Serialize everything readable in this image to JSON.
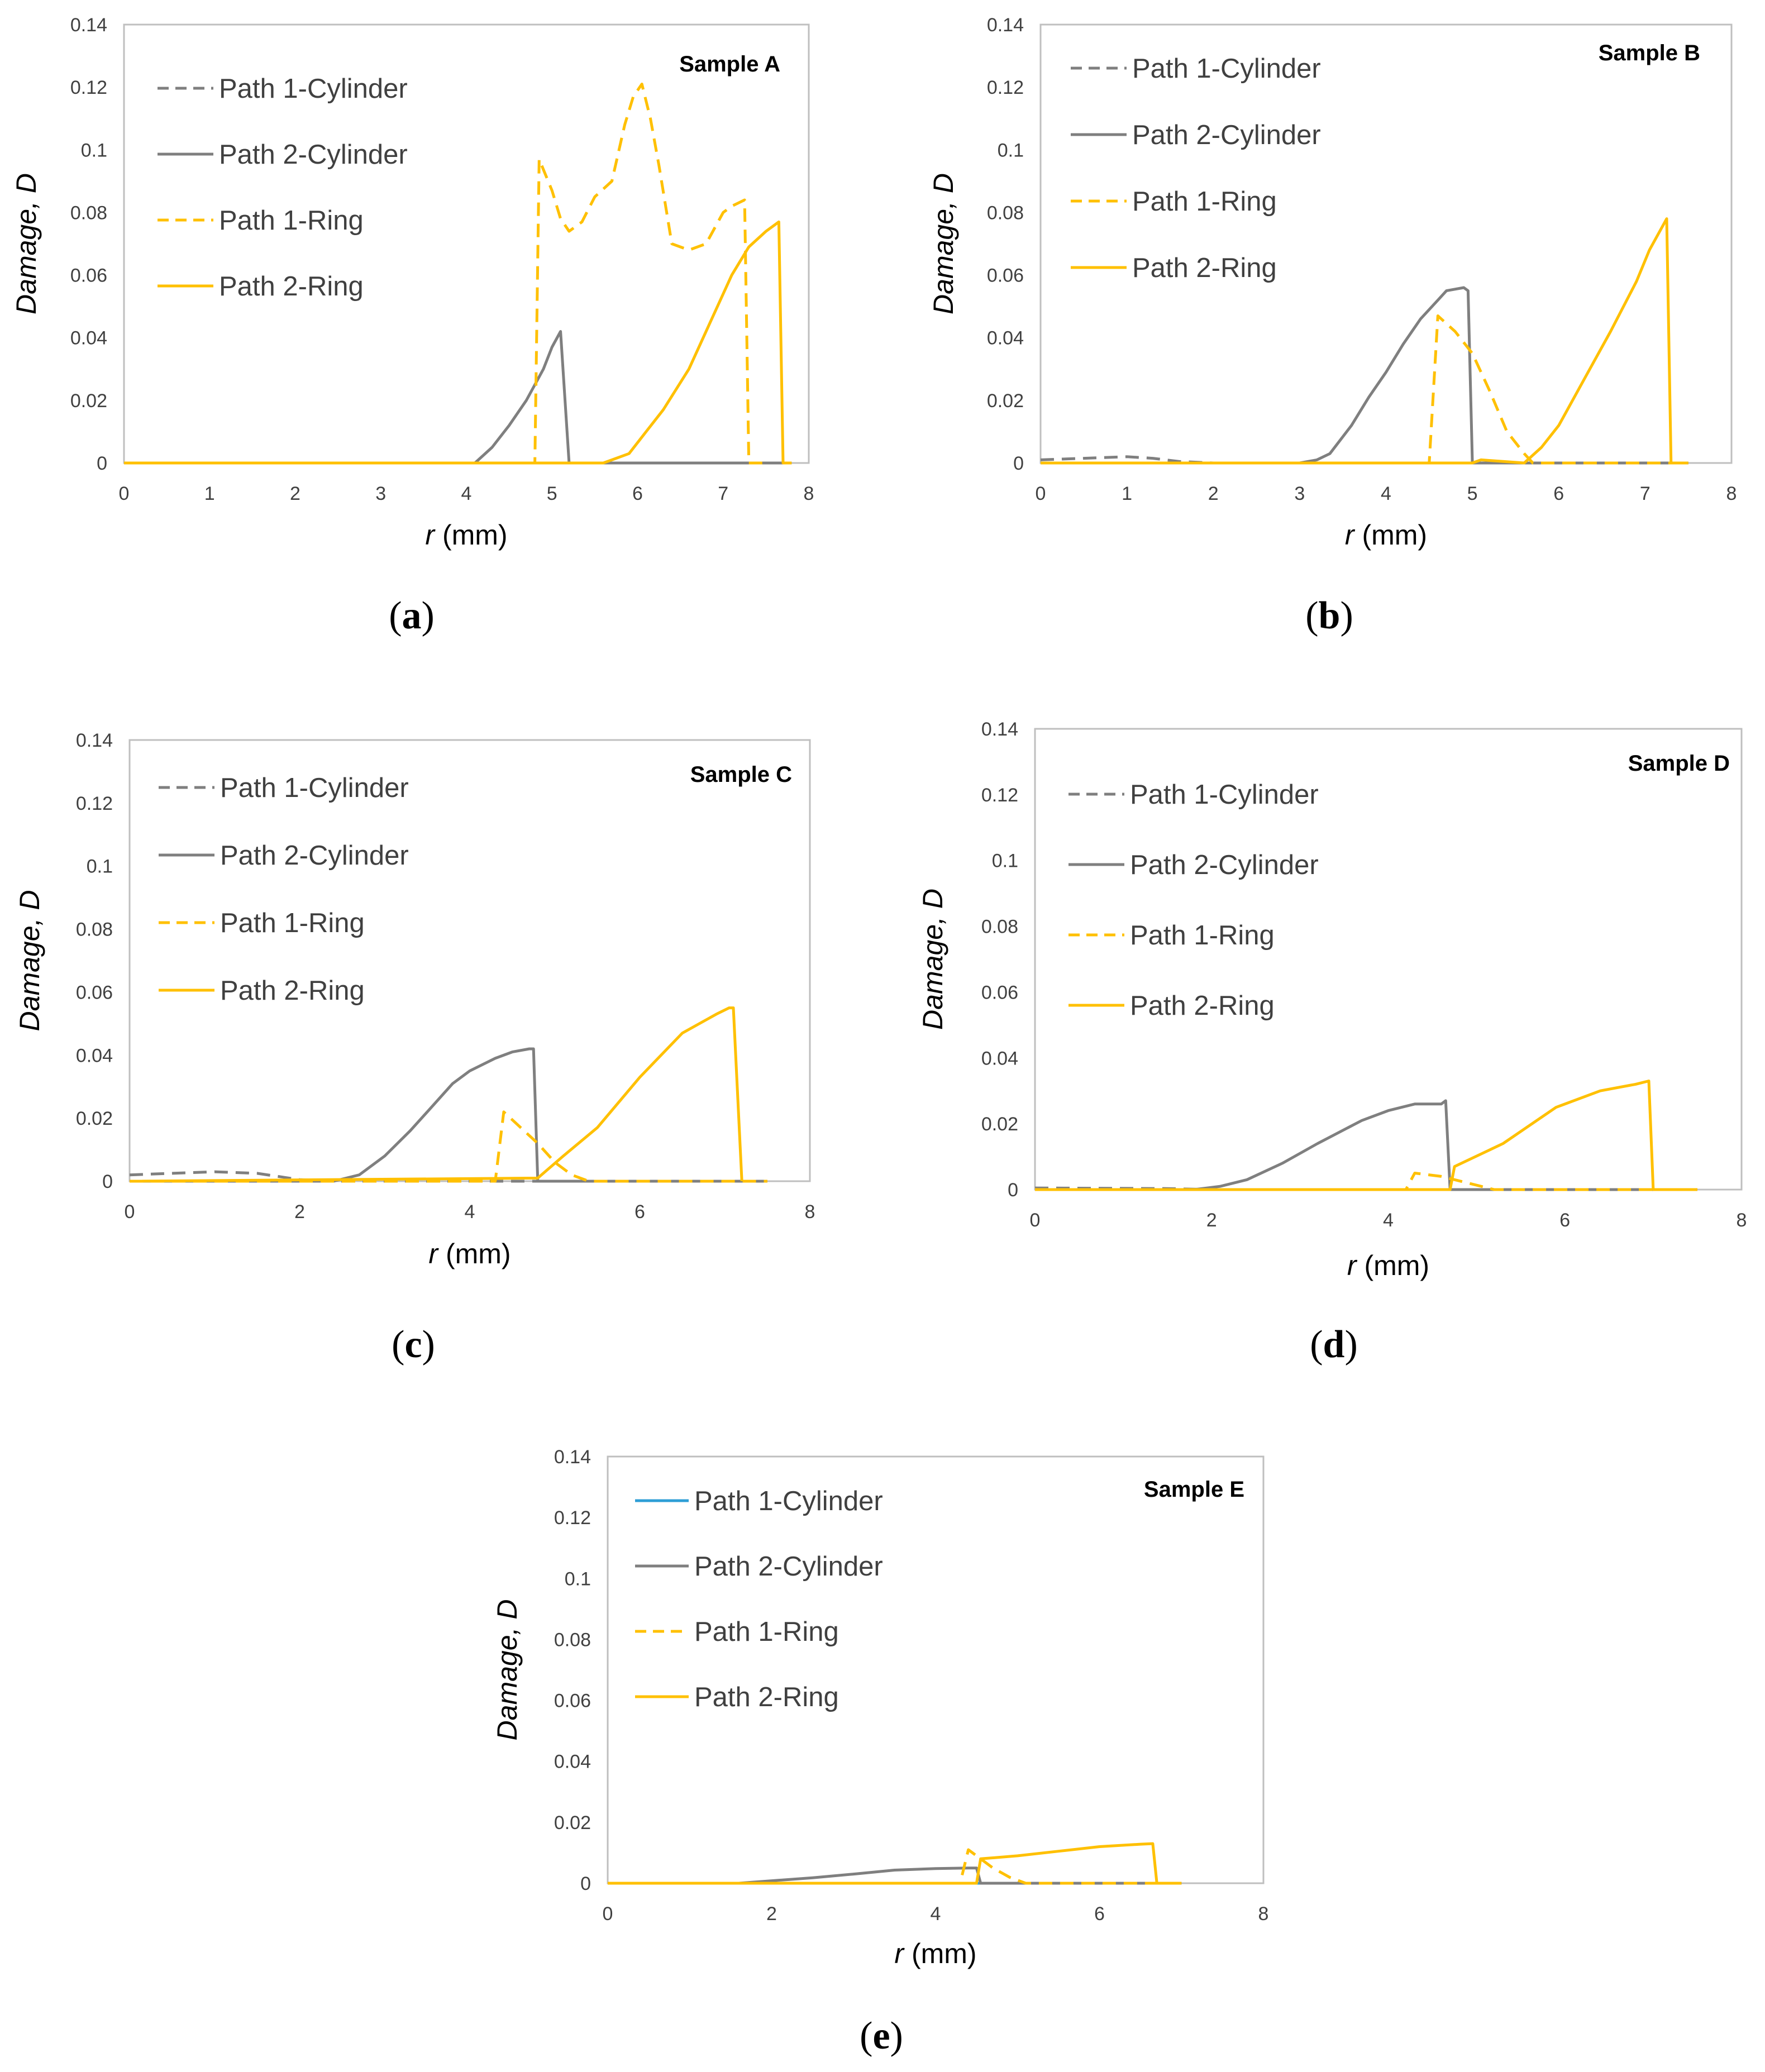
{
  "chart_data": [
    {
      "type": "line",
      "panel_label": "a",
      "title": "Sample A",
      "xlabel_italic": "r",
      "xlabel_rest": " (mm)",
      "ylabel": "Damage,  D",
      "xlim": [
        0,
        8
      ],
      "ylim": [
        0,
        0.14
      ],
      "xticks": [
        "0",
        "1",
        "2",
        "3",
        "4",
        "5",
        "6",
        "7",
        "8"
      ],
      "yticks": [
        "0",
        "0.02",
        "0.04",
        "0.06",
        "0.08",
        "0.1",
        "0.12",
        "0.14"
      ],
      "series": [
        {
          "name": "Path 1-Cylinder",
          "color": "#7f7f7f",
          "dash": true,
          "x": [
            0,
            4.8,
            7.8
          ],
          "y": [
            0,
            0,
            0
          ]
        },
        {
          "name": "Path 2-Cylinder",
          "color": "#7f7f7f",
          "dash": false,
          "x": [
            0,
            4.1,
            4.3,
            4.5,
            4.7,
            4.9,
            5.0,
            5.1,
            5.2,
            5.8,
            7.7
          ],
          "y": [
            0,
            0,
            0.005,
            0.012,
            0.02,
            0.03,
            0.037,
            0.042,
            0,
            0,
            0
          ]
        },
        {
          "name": "Path 1-Ring",
          "color": "#ffc000",
          "dash": true,
          "x": [
            0,
            4.8,
            4.85,
            5.0,
            5.1,
            5.2,
            5.35,
            5.5,
            5.7,
            5.85,
            5.95,
            6.05,
            6.15,
            6.25,
            6.4,
            6.6,
            6.8,
            7.0,
            7.1,
            7.25,
            7.3,
            7.5
          ],
          "y": [
            0,
            0,
            0.097,
            0.087,
            0.078,
            0.074,
            0.077,
            0.085,
            0.09,
            0.108,
            0.117,
            0.121,
            0.11,
            0.095,
            0.07,
            0.068,
            0.07,
            0.08,
            0.082,
            0.084,
            0,
            0
          ]
        },
        {
          "name": "Path 2-Ring",
          "color": "#ffc000",
          "dash": false,
          "x": [
            0,
            5.6,
            5.9,
            6.1,
            6.3,
            6.6,
            6.9,
            7.1,
            7.3,
            7.5,
            7.65,
            7.7,
            7.8
          ],
          "y": [
            0,
            0,
            0.003,
            0.01,
            0.017,
            0.03,
            0.048,
            0.06,
            0.069,
            0.074,
            0.077,
            0,
            0
          ]
        }
      ]
    },
    {
      "type": "line",
      "panel_label": "b",
      "title": "Sample B",
      "xlabel_italic": "r",
      "xlabel_rest": " (mm)",
      "ylabel": "Damage,  D",
      "xlim": [
        0,
        8
      ],
      "ylim": [
        0,
        0.14
      ],
      "xticks": [
        "0",
        "1",
        "2",
        "3",
        "4",
        "5",
        "6",
        "7",
        "8"
      ],
      "yticks": [
        "0",
        "0.02",
        "0.04",
        "0.06",
        "0.08",
        "0.1",
        "0.12",
        "0.14"
      ],
      "series": [
        {
          "name": "Path 1-Cylinder",
          "color": "#7f7f7f",
          "dash": true,
          "x": [
            0,
            0.5,
            1.0,
            1.3,
            1.6,
            2.0,
            7.5
          ],
          "y": [
            0.001,
            0.0015,
            0.002,
            0.0015,
            0.0005,
            0,
            0
          ]
        },
        {
          "name": "Path 2-Cylinder",
          "color": "#7f7f7f",
          "dash": false,
          "x": [
            0,
            3.0,
            3.2,
            3.35,
            3.6,
            3.8,
            4.0,
            4.2,
            4.4,
            4.6,
            4.7,
            4.9,
            4.95,
            5.0,
            7.5
          ],
          "y": [
            0,
            0,
            0.001,
            0.003,
            0.012,
            0.021,
            0.029,
            0.038,
            0.046,
            0.052,
            0.055,
            0.056,
            0.055,
            0,
            0
          ]
        },
        {
          "name": "Path 1-Ring",
          "color": "#ffc000",
          "dash": true,
          "x": [
            0,
            4.5,
            4.6,
            4.8,
            5.0,
            5.2,
            5.4,
            5.6,
            5.7,
            7.5
          ],
          "y": [
            0,
            0,
            0.047,
            0.042,
            0.035,
            0.023,
            0.01,
            0.003,
            0,
            0
          ]
        },
        {
          "name": "Path 2-Ring",
          "color": "#ffc000",
          "dash": false,
          "x": [
            0,
            5.0,
            5.1,
            5.6,
            5.8,
            6.0,
            6.3,
            6.6,
            6.9,
            7.05,
            7.25,
            7.3,
            7.5
          ],
          "y": [
            0,
            0,
            0.001,
            0,
            0.005,
            0.012,
            0.027,
            0.042,
            0.058,
            0.068,
            0.078,
            0,
            0
          ]
        }
      ]
    },
    {
      "type": "line",
      "panel_label": "c",
      "title": "Sample C",
      "xlabel_italic": "r",
      "xlabel_rest": " (mm)",
      "ylabel": "Damage,  D",
      "xlim": [
        0,
        8
      ],
      "ylim": [
        0,
        0.14
      ],
      "xticks": [
        "0",
        "2",
        "4",
        "6",
        "8"
      ],
      "yticks": [
        "0",
        "0.02",
        "0.04",
        "0.06",
        "0.08",
        "0.1",
        "0.12",
        "0.14"
      ],
      "series": [
        {
          "name": "Path 1-Cylinder",
          "color": "#7f7f7f",
          "dash": true,
          "x": [
            0,
            0.5,
            1.0,
            1.5,
            2.0,
            2.4,
            7.5
          ],
          "y": [
            0.002,
            0.0025,
            0.003,
            0.0025,
            0.0005,
            0,
            0
          ]
        },
        {
          "name": "Path 2-Cylinder",
          "color": "#7f7f7f",
          "dash": false,
          "x": [
            0,
            2.4,
            2.7,
            3.0,
            3.3,
            3.5,
            3.8,
            4.0,
            4.3,
            4.5,
            4.7,
            4.75,
            4.8,
            7.5
          ],
          "y": [
            0,
            0,
            0.002,
            0.008,
            0.016,
            0.022,
            0.031,
            0.035,
            0.039,
            0.041,
            0.042,
            0.042,
            0,
            0
          ]
        },
        {
          "name": "Path 1-Ring",
          "color": "#ffc000",
          "dash": true,
          "x": [
            0,
            4.3,
            4.4,
            4.6,
            4.8,
            5.0,
            5.2,
            5.4,
            7.5
          ],
          "y": [
            0,
            0,
            0.022,
            0.017,
            0.012,
            0.006,
            0.002,
            0,
            0
          ]
        },
        {
          "name": "Path 2-Ring",
          "color": "#ffc000",
          "dash": false,
          "x": [
            0,
            4.8,
            5.1,
            5.5,
            6.0,
            6.5,
            6.9,
            7.05,
            7.1,
            7.2
          ],
          "y": [
            0,
            0.001,
            0.008,
            0.017,
            0.033,
            0.047,
            0.053,
            0.055,
            0.055,
            0
          ]
        }
      ]
    },
    {
      "type": "line",
      "panel_label": "d",
      "title": "Sample D",
      "xlabel_italic": "r",
      "xlabel_rest": " (mm)",
      "ylabel": "Damage,  D",
      "xlim": [
        0,
        8
      ],
      "ylim": [
        0,
        0.14
      ],
      "xticks": [
        "0",
        "2",
        "4",
        "6",
        "8"
      ],
      "yticks": [
        "0",
        "0.02",
        "0.04",
        "0.06",
        "0.08",
        "0.1",
        "0.12",
        "0.14"
      ],
      "series": [
        {
          "name": "Path 1-Cylinder",
          "color": "#7f7f7f",
          "dash": true,
          "x": [
            0,
            1.5,
            2.0,
            7.5
          ],
          "y": [
            0.0005,
            0.0003,
            0,
            0
          ]
        },
        {
          "name": "Path 2-Cylinder",
          "color": "#7f7f7f",
          "dash": false,
          "x": [
            0,
            1.8,
            2.1,
            2.4,
            2.8,
            3.2,
            3.7,
            4.0,
            4.3,
            4.6,
            4.65,
            4.7,
            7.5
          ],
          "y": [
            0,
            0,
            0.001,
            0.003,
            0.008,
            0.014,
            0.021,
            0.024,
            0.026,
            0.026,
            0.027,
            0,
            0
          ]
        },
        {
          "name": "Path 1-Ring",
          "color": "#ffc000",
          "dash": true,
          "x": [
            0,
            4.2,
            4.3,
            4.6,
            4.9,
            5.2,
            7.5
          ],
          "y": [
            0,
            0,
            0.005,
            0.004,
            0.002,
            0,
            0
          ]
        },
        {
          "name": "Path 2-Ring",
          "color": "#ffc000",
          "dash": false,
          "x": [
            0,
            4.7,
            4.75,
            5.3,
            5.9,
            6.4,
            6.8,
            6.95,
            7.0,
            7.5
          ],
          "y": [
            0,
            0,
            0.007,
            0.014,
            0.025,
            0.03,
            0.032,
            0.033,
            0,
            0
          ]
        }
      ]
    },
    {
      "type": "line",
      "panel_label": "e",
      "title": "Sample E",
      "xlabel_italic": "r",
      "xlabel_rest": " (mm)",
      "ylabel": "Damage,  D",
      "xlim": [
        0,
        8
      ],
      "ylim": [
        0,
        0.14
      ],
      "xticks": [
        "0",
        "2",
        "4",
        "6",
        "8"
      ],
      "yticks": [
        "0",
        "0.02",
        "0.04",
        "0.06",
        "0.08",
        "0.1",
        "0.12",
        "0.14"
      ],
      "series": [
        {
          "name": "Path 1-Cylinder",
          "color": "#2e9ed6",
          "dash": false,
          "x": [
            0,
            7.0
          ],
          "y": [
            0,
            0
          ]
        },
        {
          "name": "Path 2-Cylinder",
          "color": "#7f7f7f",
          "dash": false,
          "x": [
            0,
            1.6,
            2.0,
            2.5,
            3.0,
            3.5,
            4.0,
            4.4,
            4.5,
            4.55,
            7.0
          ],
          "y": [
            0,
            0,
            0.0008,
            0.0018,
            0.003,
            0.0043,
            0.0048,
            0.005,
            0.005,
            0,
            0
          ]
        },
        {
          "name": "Path 1-Ring",
          "color": "#ffc000",
          "dash": true,
          "x": [
            0,
            4.3,
            4.4,
            4.5,
            4.7,
            4.9,
            5.1,
            7.0
          ],
          "y": [
            0,
            0,
            0.011,
            0.009,
            0.005,
            0.002,
            0,
            0
          ]
        },
        {
          "name": "Path 2-Ring",
          "color": "#ffc000",
          "dash": false,
          "x": [
            0,
            4.5,
            4.55,
            5.0,
            5.5,
            6.0,
            6.5,
            6.65,
            6.7,
            7.0
          ],
          "y": [
            0,
            0,
            0.008,
            0.009,
            0.0105,
            0.012,
            0.0128,
            0.013,
            0,
            0
          ]
        }
      ]
    }
  ]
}
